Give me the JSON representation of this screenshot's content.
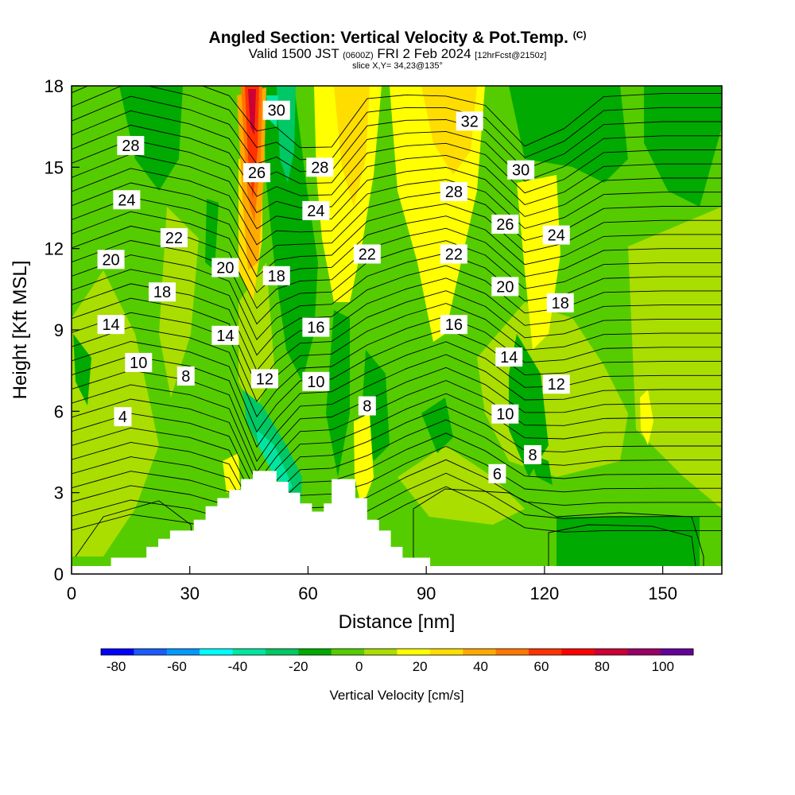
{
  "title": {
    "main": "Angled Section: Vertical Velocity & Pot.Temp.",
    "copyright": "(C)",
    "valid_prefix": "Valid 1500 JST",
    "valid_utc": "(0600Z)",
    "valid_date": "FRI 2 Feb 2024",
    "forecast": "[12hrFcst@2150z]",
    "slice": "slice X,Y= 34,23@135°"
  },
  "chart_data": {
    "type": "heatmap",
    "xlabel": "Distance [nm]",
    "ylabel": "Height [Kft MSL]",
    "xlim": [
      0,
      165
    ],
    "ylim": [
      0,
      18
    ],
    "x_ticks": [
      "0",
      "30",
      "60",
      "90",
      "120",
      "150"
    ],
    "y_ticks": [
      "0",
      "3",
      "6",
      "9",
      "12",
      "15",
      "18"
    ],
    "colorbar": {
      "label": "Vertical Velocity [cm/s]",
      "ticks": [
        "-80",
        "-60",
        "-40",
        "-20",
        "0",
        "20",
        "40",
        "60",
        "80",
        "100"
      ],
      "min": -85,
      "max": 110,
      "colors": [
        "#0000ff",
        "#1a5cff",
        "#0099ff",
        "#00ffff",
        "#00e6a0",
        "#00c864",
        "#00aa00",
        "#55cc00",
        "#aadd00",
        "#ffff00",
        "#ffdd00",
        "#ffaa00",
        "#ff7700",
        "#ff3300",
        "#ff0000",
        "#cc0033",
        "#990066",
        "#660099"
      ]
    },
    "terrain_profile": [
      [
        0,
        0
      ],
      [
        10,
        0
      ],
      [
        10,
        0.6
      ],
      [
        19,
        0.6
      ],
      [
        19,
        1.0
      ],
      [
        22,
        1.0
      ],
      [
        22,
        1.3
      ],
      [
        25,
        1.3
      ],
      [
        25,
        1.6
      ],
      [
        31,
        1.6
      ],
      [
        31,
        2.0
      ],
      [
        34,
        2.0
      ],
      [
        34,
        2.5
      ],
      [
        37,
        2.5
      ],
      [
        37,
        2.8
      ],
      [
        40,
        2.8
      ],
      [
        40,
        3.1
      ],
      [
        43,
        3.1
      ],
      [
        43,
        3.5
      ],
      [
        46,
        3.5
      ],
      [
        46,
        3.8
      ],
      [
        52,
        3.8
      ],
      [
        52,
        3.4
      ],
      [
        55,
        3.4
      ],
      [
        55,
        3.0
      ],
      [
        58,
        3.0
      ],
      [
        58,
        2.6
      ],
      [
        61,
        2.6
      ],
      [
        61,
        2.3
      ],
      [
        64,
        2.3
      ],
      [
        64,
        2.6
      ],
      [
        66,
        2.6
      ],
      [
        66,
        3.5
      ],
      [
        72,
        3.5
      ],
      [
        72,
        2.8
      ],
      [
        75,
        2.8
      ],
      [
        75,
        2.0
      ],
      [
        78,
        2.0
      ],
      [
        78,
        1.6
      ],
      [
        81,
        1.6
      ],
      [
        81,
        1.0
      ],
      [
        84,
        1.0
      ],
      [
        84,
        0.6
      ],
      [
        91,
        0.6
      ],
      [
        91,
        0
      ],
      [
        165,
        0
      ]
    ],
    "theta_contour_labels": [
      {
        "value": "4",
        "x": 13,
        "y": 5.8
      },
      {
        "value": "8",
        "x": 29,
        "y": 7.3
      },
      {
        "value": "10",
        "x": 17,
        "y": 7.8
      },
      {
        "value": "14",
        "x": 10,
        "y": 9.2
      },
      {
        "value": "18",
        "x": 23,
        "y": 10.4
      },
      {
        "value": "20",
        "x": 10,
        "y": 11.6
      },
      {
        "value": "22",
        "x": 26,
        "y": 12.4
      },
      {
        "value": "24",
        "x": 14,
        "y": 13.8
      },
      {
        "value": "28",
        "x": 15,
        "y": 15.8
      },
      {
        "value": "20",
        "x": 39,
        "y": 11.3
      },
      {
        "value": "14",
        "x": 39,
        "y": 8.8
      },
      {
        "value": "12",
        "x": 49,
        "y": 7.2
      },
      {
        "value": "18",
        "x": 52,
        "y": 11.0
      },
      {
        "value": "26",
        "x": 47,
        "y": 14.8
      },
      {
        "value": "30",
        "x": 52,
        "y": 17.1
      },
      {
        "value": "28",
        "x": 63,
        "y": 15.0
      },
      {
        "value": "24",
        "x": 62,
        "y": 13.4
      },
      {
        "value": "16",
        "x": 62,
        "y": 9.1
      },
      {
        "value": "10",
        "x": 62,
        "y": 7.1
      },
      {
        "value": "8",
        "x": 75,
        "y": 6.2
      },
      {
        "value": "22",
        "x": 75,
        "y": 11.8
      },
      {
        "value": "32",
        "x": 101,
        "y": 16.7
      },
      {
        "value": "28",
        "x": 97,
        "y": 14.1
      },
      {
        "value": "22",
        "x": 97,
        "y": 11.8
      },
      {
        "value": "16",
        "x": 97,
        "y": 9.2
      },
      {
        "value": "30",
        "x": 114,
        "y": 14.9
      },
      {
        "value": "26",
        "x": 110,
        "y": 12.9
      },
      {
        "value": "20",
        "x": 110,
        "y": 10.6
      },
      {
        "value": "14",
        "x": 111,
        "y": 8.0
      },
      {
        "value": "10",
        "x": 110,
        "y": 5.9
      },
      {
        "value": "8",
        "x": 117,
        "y": 4.4
      },
      {
        "value": "6",
        "x": 108,
        "y": 3.7
      },
      {
        "value": "24",
        "x": 123,
        "y": 12.5
      },
      {
        "value": "18",
        "x": 124,
        "y": 10.0
      },
      {
        "value": "12",
        "x": 123,
        "y": 7.0
      }
    ]
  }
}
